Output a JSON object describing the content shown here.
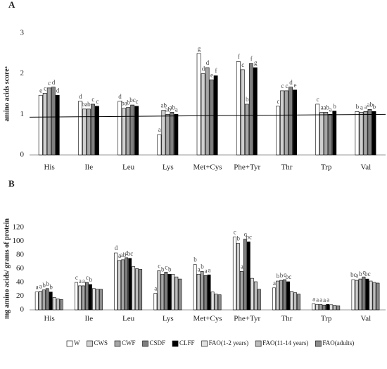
{
  "chart_data": [
    {
      "type": "bar",
      "title": "A",
      "y_label": "amino acids scoreᵃ",
      "categories": [
        "His",
        "Ile",
        "Leu",
        "Lys",
        "Met+Cys",
        "Phe+Tyr",
        "Thr",
        "Trp",
        "Val"
      ],
      "ylim": [
        0,
        3
      ],
      "yticks": [
        0,
        1,
        2,
        3
      ],
      "reference_line": [
        0.93,
        1.0
      ],
      "series": [
        {
          "color": "#ffffff",
          "values": [
            1.47,
            1.32,
            1.32,
            0.5,
            2.5,
            2.3,
            1.2,
            1.25,
            1.07
          ],
          "labels": [
            "e",
            "d",
            "d",
            "a",
            "g",
            "f",
            "c",
            "c",
            "b"
          ]
        },
        {
          "color": "#d0d0d0",
          "values": [
            1.52,
            1.13,
            1.15,
            1.1,
            2.0,
            2.1,
            1.58,
            1.05,
            1.05
          ],
          "labels": [
            "c",
            "ba",
            "ba",
            "ab",
            "d",
            "c",
            "c",
            "a",
            "a"
          ]
        },
        {
          "color": "#a6a6a6",
          "values": [
            1.65,
            1.13,
            1.17,
            1.0,
            2.15,
            1.25,
            1.58,
            1.05,
            1.07
          ],
          "labels": [
            "c",
            "b",
            "b",
            "ab",
            "d",
            "b",
            "c",
            "ab",
            "a"
          ]
        },
        {
          "color": "#7f7f7f",
          "values": [
            1.67,
            1.25,
            1.23,
            1.05,
            1.85,
            2.25,
            1.67,
            1.0,
            1.12
          ],
          "labels": [
            "d",
            "c",
            "bc",
            "ab",
            "e",
            "f",
            "d",
            "a",
            "ab"
          ]
        },
        {
          "color": "#000000",
          "values": [
            1.47,
            1.2,
            1.2,
            1.0,
            1.95,
            2.15,
            1.6,
            1.08,
            1.07
          ],
          "labels": [
            "d",
            "c",
            "c",
            "a",
            "f",
            "g",
            "e",
            "b",
            "b"
          ]
        }
      ]
    },
    {
      "type": "bar",
      "title": "B",
      "y_label": "mg amino acids/ grams of protein",
      "categories": [
        "His",
        "Ile",
        "Leu",
        "Lys",
        "Met+Cys",
        "Phe+Tyr",
        "Thr",
        "Trp",
        "Val"
      ],
      "ylim": [
        0,
        120
      ],
      "yticks": [
        0,
        20,
        40,
        60,
        80,
        100,
        120
      ],
      "series": [
        {
          "name": "W",
          "color": "#ffffff",
          "values": [
            26,
            40,
            83,
            24,
            66,
            106,
            32,
            9,
            44
          ],
          "labels": [
            "a",
            "c",
            "d",
            "a",
            "b",
            "c",
            "a",
            "a",
            "bc"
          ]
        },
        {
          "name": "CWS",
          "color": "#d0d0d0",
          "values": [
            27,
            35,
            72,
            57,
            52,
            97,
            42,
            8,
            43
          ],
          "labels": [
            "a",
            "a",
            "a",
            "c",
            "a",
            "b",
            "b",
            "a",
            "a"
          ]
        },
        {
          "name": "CWF",
          "color": "#a6a6a6",
          "values": [
            29,
            35,
            73,
            52,
            56,
            56,
            43,
            8,
            45
          ],
          "labels": [
            "b",
            "a",
            "ab",
            "b",
            "b",
            "a",
            "b",
            "a",
            "b"
          ]
        },
        {
          "name": "CSDF",
          "color": "#7f7f7f",
          "values": [
            31,
            40,
            76,
            55,
            50,
            103,
            44,
            7,
            48
          ],
          "labels": [
            "b",
            "c",
            "c",
            "c",
            "a",
            "c",
            "c",
            "a",
            "c"
          ]
        },
        {
          "name": "CLFF",
          "color": "#000000",
          "values": [
            26,
            37,
            75,
            52,
            51,
            99,
            41,
            8,
            45
          ],
          "labels": [
            "b",
            "b",
            "bc",
            "b",
            "a",
            "bc",
            "bc",
            "a",
            "bc"
          ]
        },
        {
          "name": "FAO(1-2 years)",
          "color": "#e0e0e0",
          "values": [
            18,
            31,
            63,
            52,
            26,
            46,
            27,
            7.4,
            42
          ]
        },
        {
          "name": "FAO(11-14 years)",
          "color": "#bcbcbc",
          "values": [
            16,
            30,
            60,
            48,
            23,
            41,
            25,
            6.6,
            40
          ]
        },
        {
          "name": "FAO(adults)",
          "color": "#8c8c8c",
          "values": [
            15,
            30,
            59,
            45,
            22,
            30,
            23,
            6,
            39
          ]
        }
      ]
    }
  ]
}
